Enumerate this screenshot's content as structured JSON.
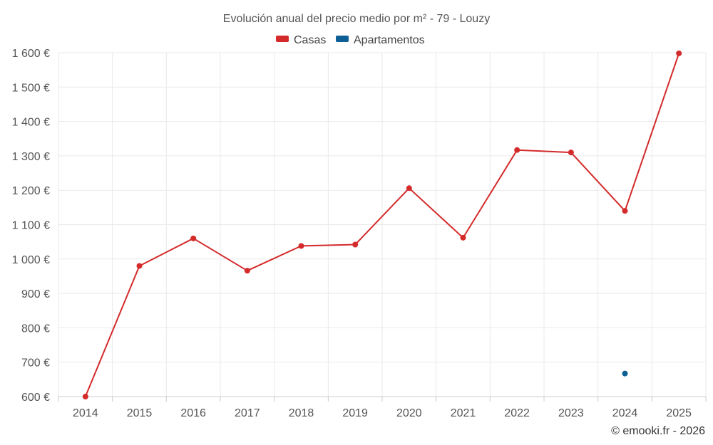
{
  "chart_data": {
    "type": "line",
    "title": "Evolución anual del precio medio por m² - 79 - Louzy",
    "categories": [
      "2014",
      "2015",
      "2016",
      "2017",
      "2018",
      "2019",
      "2020",
      "2021",
      "2022",
      "2023",
      "2024",
      "2025"
    ],
    "series": [
      {
        "name": "Casas",
        "color": "#d42a2a",
        "values": [
          600,
          980,
          1060,
          966,
          1038,
          1042,
          1206,
          1062,
          1317,
          1310,
          1140,
          1598
        ]
      },
      {
        "name": "Apartamentos",
        "color": "#0e5f96",
        "values": [
          null,
          null,
          null,
          null,
          null,
          null,
          null,
          null,
          null,
          null,
          667,
          null
        ]
      }
    ],
    "ylim": [
      600,
      1600
    ],
    "yticks": [
      600,
      700,
      800,
      900,
      1000,
      1100,
      1200,
      1300,
      1400,
      1500,
      1600
    ],
    "ytick_labels": [
      "600 €",
      "700 €",
      "800 €",
      "900 €",
      "1 000 €",
      "1 100 €",
      "1 200 €",
      "1 300 €",
      "1 400 €",
      "1 500 €",
      "1 600 €"
    ],
    "xlabel": "",
    "ylabel": "",
    "grid": true,
    "legend_position": "top-center",
    "credit": "© emooki.fr - 2026"
  }
}
